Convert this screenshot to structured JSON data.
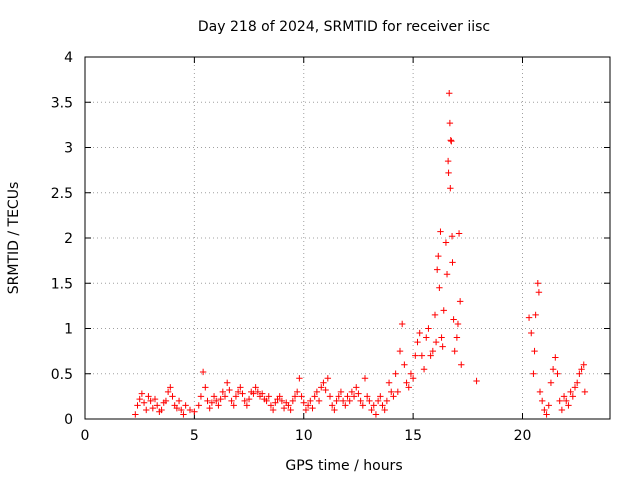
{
  "chart_data": {
    "type": "scatter",
    "title": "Day 218 of 2024, SRMTID for receiver iisc",
    "xlabel": "GPS time / hours",
    "ylabel": "SRMTID / TECUs",
    "xlim": [
      0,
      24
    ],
    "ylim": [
      0,
      4
    ],
    "xticks": [
      0,
      5,
      10,
      15,
      20
    ],
    "yticks": [
      0,
      0.5,
      1,
      1.5,
      2,
      2.5,
      3,
      3.5,
      4
    ],
    "grid": true,
    "marker": "+",
    "color": "#ff0000",
    "series": [
      {
        "name": "SRMTID",
        "points": [
          [
            2.3,
            0.05
          ],
          [
            2.4,
            0.15
          ],
          [
            2.5,
            0.22
          ],
          [
            2.6,
            0.28
          ],
          [
            2.7,
            0.18
          ],
          [
            2.8,
            0.1
          ],
          [
            2.9,
            0.25
          ],
          [
            3.0,
            0.2
          ],
          [
            3.1,
            0.12
          ],
          [
            3.2,
            0.22
          ],
          [
            3.3,
            0.15
          ],
          [
            3.4,
            0.08
          ],
          [
            3.5,
            0.1
          ],
          [
            3.6,
            0.18
          ],
          [
            3.7,
            0.2
          ],
          [
            3.8,
            0.3
          ],
          [
            3.9,
            0.35
          ],
          [
            4.0,
            0.25
          ],
          [
            4.1,
            0.15
          ],
          [
            4.2,
            0.12
          ],
          [
            4.3,
            0.2
          ],
          [
            4.4,
            0.1
          ],
          [
            4.5,
            0.05
          ],
          [
            4.6,
            0.15
          ],
          [
            4.8,
            0.1
          ],
          [
            5.0,
            0.08
          ],
          [
            5.2,
            0.15
          ],
          [
            5.3,
            0.25
          ],
          [
            5.4,
            0.52
          ],
          [
            5.5,
            0.35
          ],
          [
            5.6,
            0.2
          ],
          [
            5.7,
            0.12
          ],
          [
            5.8,
            0.18
          ],
          [
            5.9,
            0.25
          ],
          [
            6.0,
            0.2
          ],
          [
            6.1,
            0.15
          ],
          [
            6.2,
            0.22
          ],
          [
            6.3,
            0.3
          ],
          [
            6.4,
            0.25
          ],
          [
            6.5,
            0.4
          ],
          [
            6.6,
            0.32
          ],
          [
            6.7,
            0.2
          ],
          [
            6.8,
            0.15
          ],
          [
            6.9,
            0.25
          ],
          [
            7.0,
            0.3
          ],
          [
            7.1,
            0.35
          ],
          [
            7.2,
            0.28
          ],
          [
            7.3,
            0.2
          ],
          [
            7.4,
            0.15
          ],
          [
            7.5,
            0.22
          ],
          [
            7.6,
            0.3
          ],
          [
            7.7,
            0.28
          ],
          [
            7.8,
            0.35
          ],
          [
            7.9,
            0.3
          ],
          [
            8.0,
            0.25
          ],
          [
            8.1,
            0.28
          ],
          [
            8.2,
            0.22
          ],
          [
            8.3,
            0.2
          ],
          [
            8.4,
            0.25
          ],
          [
            8.5,
            0.15
          ],
          [
            8.6,
            0.1
          ],
          [
            8.7,
            0.18
          ],
          [
            8.8,
            0.22
          ],
          [
            8.9,
            0.25
          ],
          [
            9.0,
            0.2
          ],
          [
            9.1,
            0.12
          ],
          [
            9.2,
            0.18
          ],
          [
            9.3,
            0.15
          ],
          [
            9.4,
            0.1
          ],
          [
            9.5,
            0.2
          ],
          [
            9.6,
            0.25
          ],
          [
            9.7,
            0.3
          ],
          [
            9.8,
            0.45
          ],
          [
            9.9,
            0.25
          ],
          [
            10.0,
            0.18
          ],
          [
            10.1,
            0.1
          ],
          [
            10.2,
            0.15
          ],
          [
            10.3,
            0.2
          ],
          [
            10.4,
            0.12
          ],
          [
            10.5,
            0.25
          ],
          [
            10.6,
            0.3
          ],
          [
            10.7,
            0.2
          ],
          [
            10.8,
            0.35
          ],
          [
            10.9,
            0.4
          ],
          [
            11.0,
            0.32
          ],
          [
            11.1,
            0.45
          ],
          [
            11.2,
            0.25
          ],
          [
            11.3,
            0.15
          ],
          [
            11.4,
            0.1
          ],
          [
            11.5,
            0.2
          ],
          [
            11.6,
            0.25
          ],
          [
            11.7,
            0.3
          ],
          [
            11.8,
            0.2
          ],
          [
            11.9,
            0.15
          ],
          [
            12.0,
            0.25
          ],
          [
            12.1,
            0.2
          ],
          [
            12.2,
            0.3
          ],
          [
            12.3,
            0.25
          ],
          [
            12.4,
            0.35
          ],
          [
            12.5,
            0.28
          ],
          [
            12.6,
            0.2
          ],
          [
            12.7,
            0.15
          ],
          [
            12.8,
            0.45
          ],
          [
            12.9,
            0.25
          ],
          [
            13.0,
            0.2
          ],
          [
            13.1,
            0.1
          ],
          [
            13.2,
            0.15
          ],
          [
            13.3,
            0.05
          ],
          [
            13.4,
            0.2
          ],
          [
            13.5,
            0.25
          ],
          [
            13.6,
            0.15
          ],
          [
            13.7,
            0.1
          ],
          [
            13.8,
            0.2
          ],
          [
            13.9,
            0.4
          ],
          [
            14.0,
            0.3
          ],
          [
            14.1,
            0.25
          ],
          [
            14.2,
            0.5
          ],
          [
            14.3,
            0.3
          ],
          [
            14.4,
            0.75
          ],
          [
            14.5,
            1.05
          ],
          [
            14.6,
            0.6
          ],
          [
            14.7,
            0.4
          ],
          [
            14.8,
            0.35
          ],
          [
            14.9,
            0.5
          ],
          [
            15.0,
            0.45
          ],
          [
            15.1,
            0.7
          ],
          [
            15.2,
            0.85
          ],
          [
            15.3,
            0.95
          ],
          [
            15.4,
            0.7
          ],
          [
            15.5,
            0.55
          ],
          [
            15.6,
            0.9
          ],
          [
            15.7,
            1.0
          ],
          [
            15.8,
            0.7
          ],
          [
            15.9,
            0.75
          ],
          [
            16.0,
            1.15
          ],
          [
            16.05,
            0.85
          ],
          [
            16.1,
            1.65
          ],
          [
            16.15,
            1.8
          ],
          [
            16.2,
            1.45
          ],
          [
            16.25,
            2.07
          ],
          [
            16.3,
            0.9
          ],
          [
            16.35,
            0.8
          ],
          [
            16.4,
            1.2
          ],
          [
            16.5,
            1.95
          ],
          [
            16.55,
            1.6
          ],
          [
            16.6,
            2.85
          ],
          [
            16.62,
            2.72
          ],
          [
            16.65,
            3.6
          ],
          [
            16.68,
            3.27
          ],
          [
            16.7,
            2.55
          ],
          [
            16.72,
            3.08
          ],
          [
            16.75,
            3.07
          ],
          [
            16.78,
            2.02
          ],
          [
            16.8,
            1.73
          ],
          [
            16.85,
            1.1
          ],
          [
            16.9,
            0.75
          ],
          [
            17.0,
            0.9
          ],
          [
            17.05,
            1.05
          ],
          [
            17.1,
            2.05
          ],
          [
            17.15,
            1.3
          ],
          [
            17.2,
            0.6
          ],
          [
            17.9,
            0.42
          ],
          [
            20.3,
            1.12
          ],
          [
            20.4,
            0.95
          ],
          [
            20.5,
            0.5
          ],
          [
            20.55,
            0.75
          ],
          [
            20.6,
            1.15
          ],
          [
            20.7,
            1.5
          ],
          [
            20.75,
            1.4
          ],
          [
            20.8,
            0.3
          ],
          [
            20.9,
            0.2
          ],
          [
            21.0,
            0.1
          ],
          [
            21.1,
            0.05
          ],
          [
            21.2,
            0.15
          ],
          [
            21.3,
            0.4
          ],
          [
            21.4,
            0.55
          ],
          [
            21.5,
            0.68
          ],
          [
            21.6,
            0.5
          ],
          [
            21.7,
            0.2
          ],
          [
            21.8,
            0.1
          ],
          [
            21.9,
            0.25
          ],
          [
            22.0,
            0.2
          ],
          [
            22.1,
            0.15
          ],
          [
            22.2,
            0.3
          ],
          [
            22.3,
            0.25
          ],
          [
            22.4,
            0.35
          ],
          [
            22.5,
            0.4
          ],
          [
            22.6,
            0.5
          ],
          [
            22.7,
            0.55
          ],
          [
            22.8,
            0.6
          ],
          [
            22.85,
            0.3
          ]
        ]
      }
    ]
  }
}
